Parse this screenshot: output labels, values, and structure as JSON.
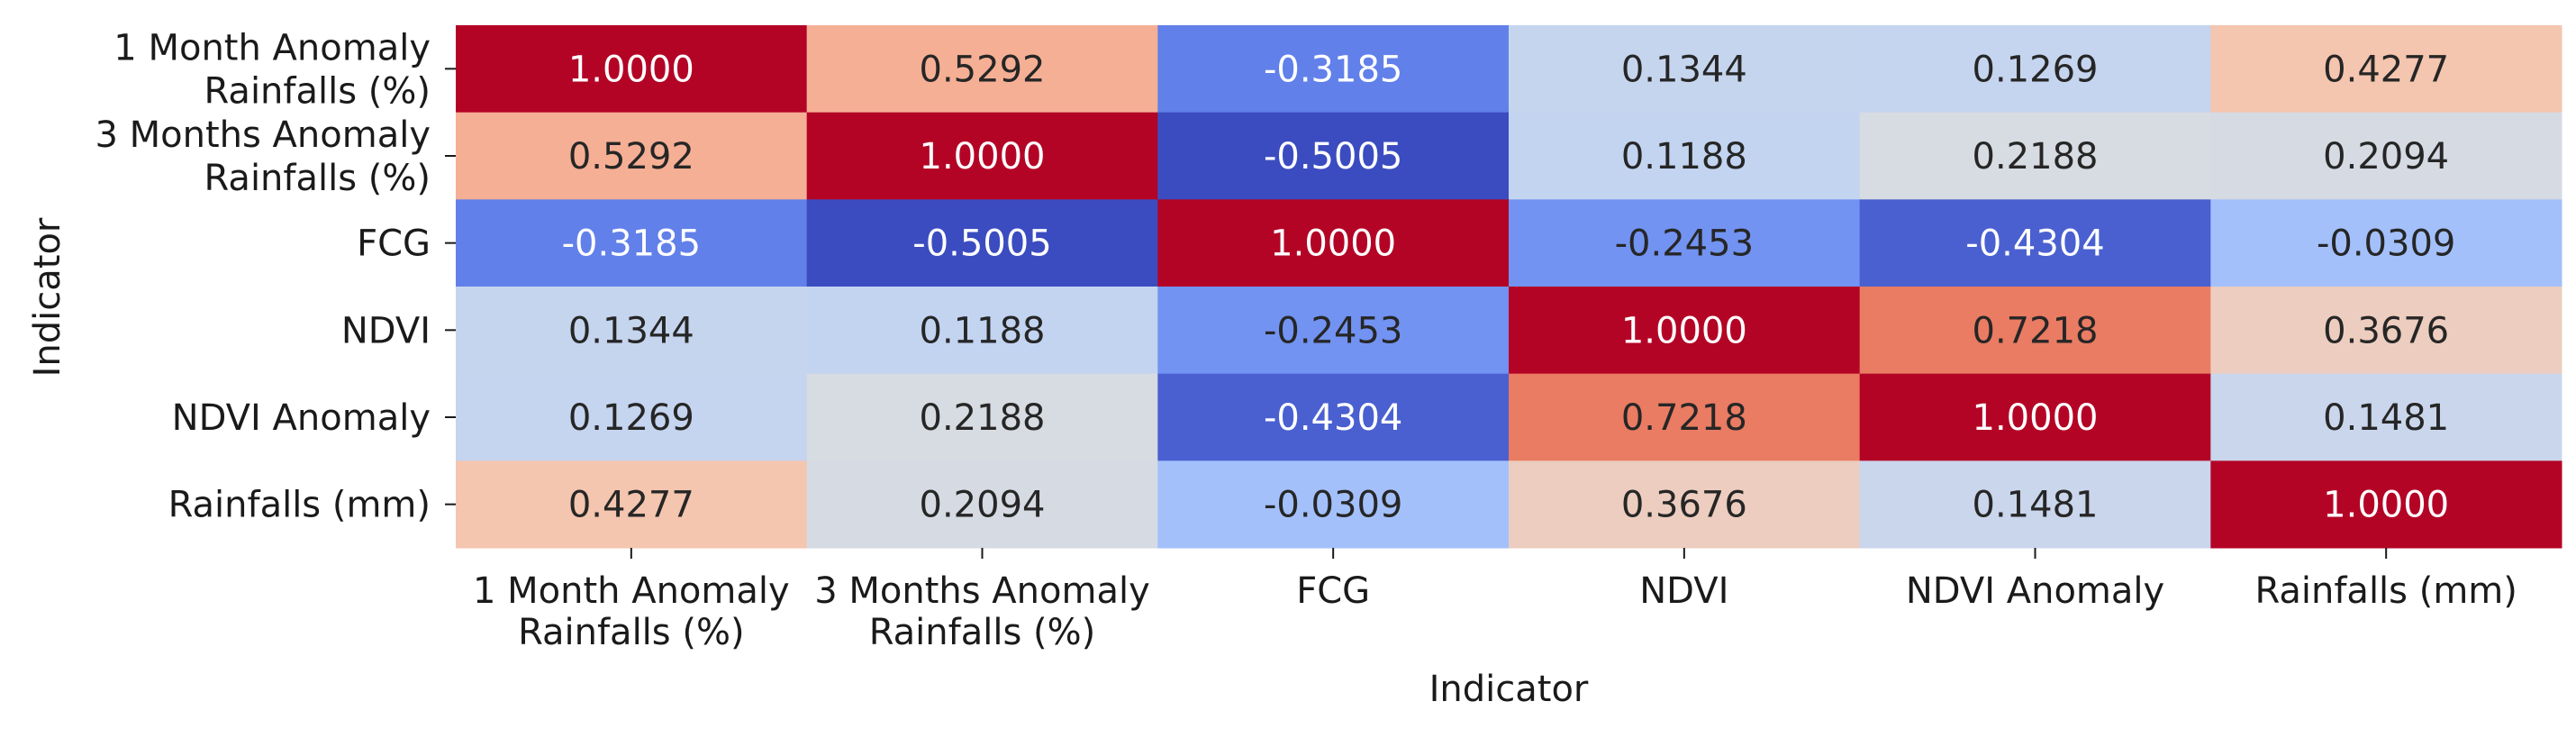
{
  "chart_data": {
    "type": "heatmap",
    "title": "",
    "xlabel": "Indicator",
    "ylabel": "Indicator",
    "x_labels": [
      [
        "1 Month Anomaly",
        "Rainfalls (%)"
      ],
      [
        "3 Months Anomaly",
        "Rainfalls (%)"
      ],
      [
        "FCG"
      ],
      [
        "NDVI"
      ],
      [
        "NDVI Anomaly"
      ],
      [
        "Rainfalls (mm)"
      ]
    ],
    "y_labels": [
      [
        "1 Month Anomaly",
        "Rainfalls (%)"
      ],
      [
        "3 Months Anomaly",
        "Rainfalls (%)"
      ],
      [
        "FCG"
      ],
      [
        "NDVI"
      ],
      [
        "NDVI Anomaly"
      ],
      [
        "Rainfalls (mm)"
      ]
    ],
    "values": [
      [
        1.0,
        0.5292,
        -0.3185,
        0.1344,
        0.1269,
        0.4277
      ],
      [
        0.5292,
        1.0,
        -0.5005,
        0.1188,
        0.2188,
        0.2094
      ],
      [
        -0.3185,
        -0.5005,
        1.0,
        -0.2453,
        -0.4304,
        -0.0309
      ],
      [
        0.1344,
        0.1188,
        -0.2453,
        1.0,
        0.7218,
        0.3676
      ],
      [
        0.1269,
        0.2188,
        -0.4304,
        0.7218,
        1.0,
        0.1481
      ],
      [
        0.4277,
        0.2094,
        -0.0309,
        0.3676,
        0.1481,
        1.0
      ]
    ],
    "cell_labels": [
      [
        "1.0000",
        "0.5292",
        "-0.3185",
        "0.1344",
        "0.1269",
        "0.4277"
      ],
      [
        "0.5292",
        "1.0000",
        "-0.5005",
        "0.1188",
        "0.2188",
        "0.2094"
      ],
      [
        "-0.3185",
        "-0.5005",
        "1.0000",
        "-0.2453",
        "-0.4304",
        "-0.0309"
      ],
      [
        "0.1344",
        "0.1188",
        "-0.2453",
        "1.0000",
        "0.7218",
        "0.3676"
      ],
      [
        "0.1269",
        "0.2188",
        "-0.4304",
        "0.7218",
        "1.0000",
        "0.1481"
      ],
      [
        "0.4277",
        "0.2094",
        "-0.0309",
        "0.3676",
        "0.1481",
        "1.0000"
      ]
    ],
    "colormap": "coolwarm",
    "vmin": -0.5005,
    "vmax": 1.0,
    "annotated": true,
    "colorbar": false,
    "grid": false
  }
}
